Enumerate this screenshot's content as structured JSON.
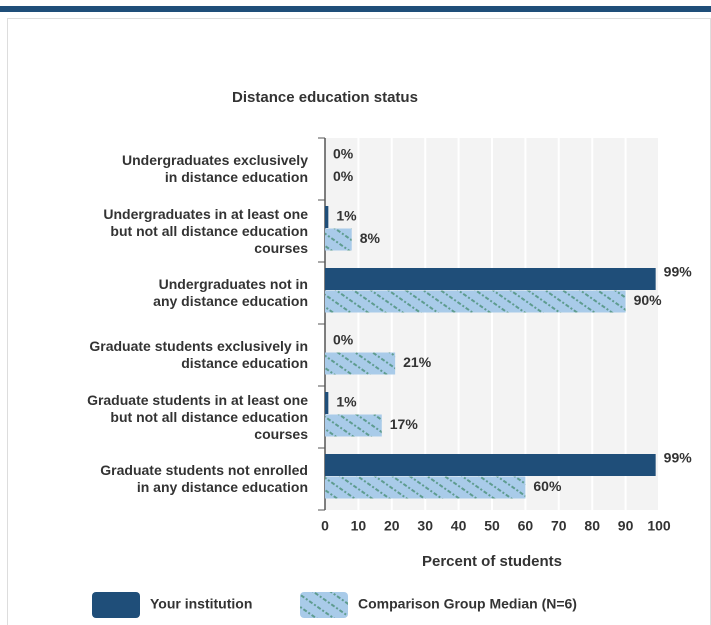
{
  "chart_data": {
    "type": "bar",
    "orientation": "horizontal",
    "title": "Distance education status",
    "xlabel": "Percent of students",
    "categories": [
      "Undergraduates exclusively\nin distance education",
      "Undergraduates in at least one\nbut not all distance education\ncourses",
      "Undergraduates not in\nany distance education",
      "Graduate students exclusively in\ndistance education",
      "Graduate students in at least one\nbut not all distance education\ncourses",
      "Graduate students not enrolled\nin any distance education"
    ],
    "series": [
      {
        "name": "Your institution",
        "color": "#1f4e79",
        "values": [
          0,
          1,
          99,
          0,
          1,
          99
        ],
        "value_labels": [
          "0%",
          "1%",
          "99%",
          "0%",
          "1%",
          "99%"
        ]
      },
      {
        "name": "Comparison Group Median (N=6)",
        "color": "#a9cbe9",
        "values": [
          0,
          8,
          90,
          21,
          17,
          60
        ],
        "value_labels": [
          "0%",
          "8%",
          "90%",
          "21%",
          "17%",
          "60%"
        ]
      }
    ],
    "xlim": [
      0,
      100
    ],
    "xticks": [
      0,
      10,
      20,
      30,
      40,
      50,
      60,
      70,
      80,
      90,
      100
    ],
    "grid": true
  }
}
